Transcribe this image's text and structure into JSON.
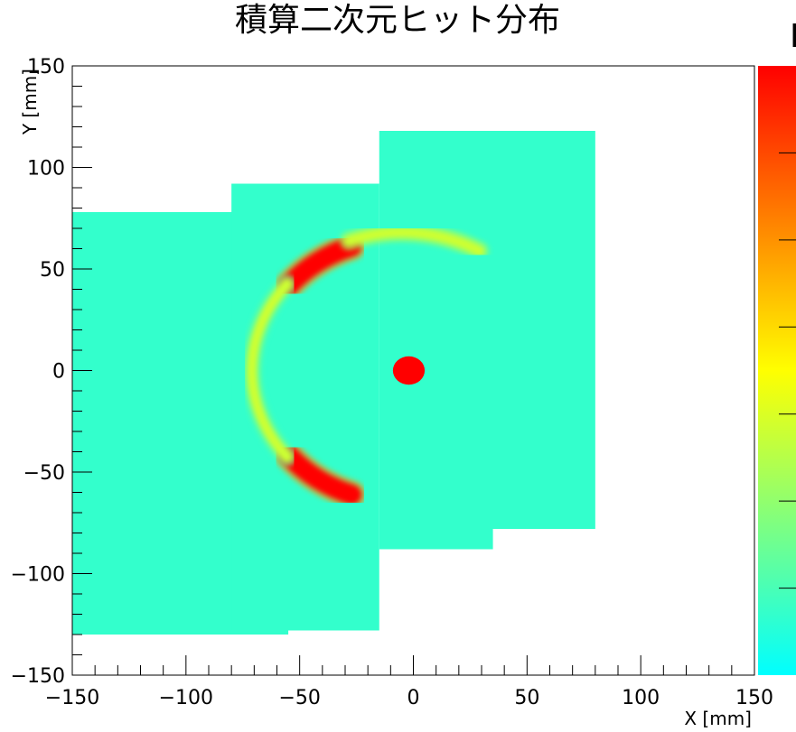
{
  "chart_data": {
    "type": "heatmap",
    "title": "積算二次元ヒット分布",
    "xlabel": "X [mm]",
    "ylabel": "Y [mm]",
    "xlim": [
      -150,
      150
    ],
    "ylim": [
      -150,
      150
    ],
    "x_ticks": [
      "−150",
      "−100",
      "−50",
      "0",
      "50",
      "100",
      "150"
    ],
    "y_ticks": [
      "−150",
      "−100",
      "−50",
      "0",
      "50",
      "100",
      "150"
    ],
    "x_tick_values": [
      -150,
      -100,
      -50,
      0,
      50,
      100,
      150
    ],
    "y_tick_values": [
      -150,
      -100,
      -50,
      0,
      50,
      100,
      150
    ],
    "colorbar": {
      "palette": [
        "#00ffff",
        "#33ffcc",
        "#66ff99",
        "#99ff66",
        "#ccff33",
        "#ffff00",
        "#ffcc00",
        "#ff9900",
        "#ff6600",
        "#ff3300",
        "#ff0000"
      ],
      "label_partial": "I"
    },
    "regions": [
      {
        "x": [
          -150,
          -55
        ],
        "y": [
          -130,
          78
        ],
        "level": 0.08
      },
      {
        "x": [
          -80,
          -15
        ],
        "y": [
          -128,
          92
        ],
        "level": 0.08
      },
      {
        "x": [
          -15,
          35
        ],
        "y": [
          -88,
          118
        ],
        "level": 0.08
      },
      {
        "x": [
          30,
          80
        ],
        "y": [
          -78,
          118
        ],
        "level": 0.08
      }
    ],
    "features": [
      {
        "kind": "spot",
        "center": [
          -2,
          0
        ],
        "radius": 7,
        "level": 1.0
      },
      {
        "kind": "arc",
        "center": [
          -5,
          0
        ],
        "radius": 65,
        "angle_from": 110,
        "angle_to": 140,
        "level": 0.95
      },
      {
        "kind": "arc",
        "center": [
          -5,
          0
        ],
        "radius": 65,
        "angle_from": 220,
        "angle_to": 250,
        "level": 0.95
      },
      {
        "kind": "arc",
        "center": [
          -5,
          0
        ],
        "radius": 68,
        "angle_from": 60,
        "angle_to": 110,
        "level": 0.4
      },
      {
        "kind": "arc",
        "center": [
          -5,
          0
        ],
        "radius": 66,
        "angle_from": 140,
        "angle_to": 220,
        "level": 0.35
      }
    ]
  }
}
